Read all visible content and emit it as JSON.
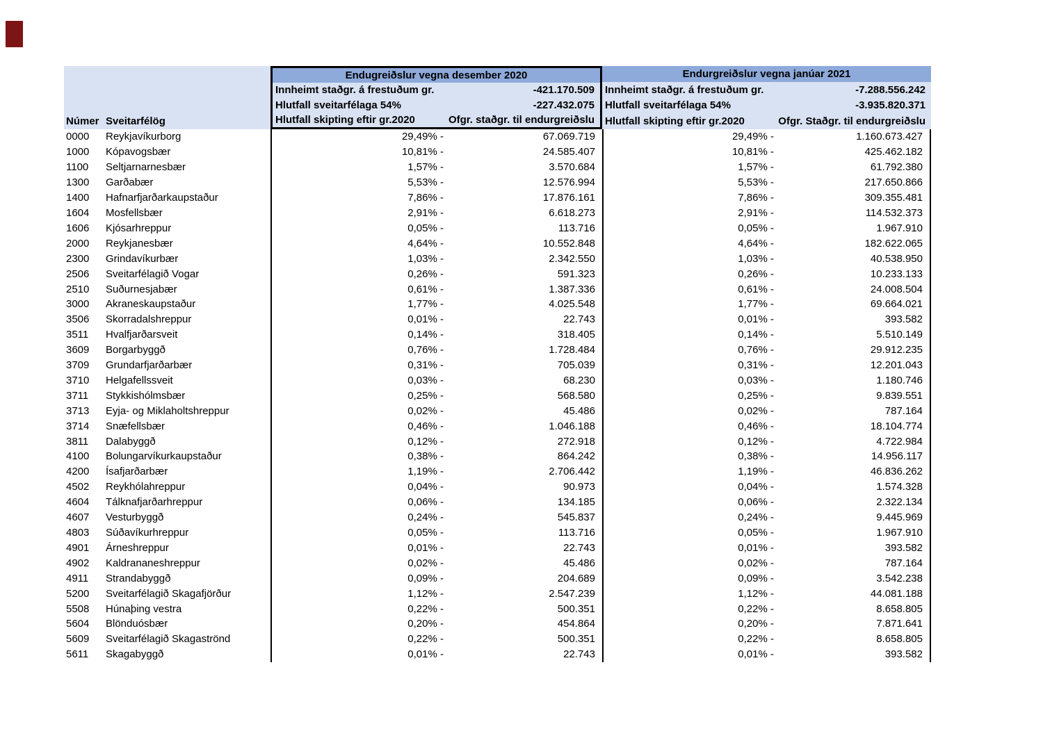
{
  "marker": {
    "color": "#7d1416"
  },
  "table": {
    "left_header": {
      "col1": "Númer",
      "col2": "Sveitarfélög"
    },
    "colors": {
      "title_band": "#8eaadb",
      "light_band": "#d9e2f3",
      "border": "#000000"
    },
    "groups": [
      {
        "title": "Endugreiðslur vegna desember 2020",
        "rows": [
          {
            "label": "Innheimt staðgr. á frestuðum gr.",
            "value": "-421.170.509"
          },
          {
            "label": "Hlutfall sveitarfélaga 54%",
            "value": "-227.432.075"
          },
          {
            "label": "Hlutfall skipting eftir gr.2020",
            "value": "Ofgr. staðgr. til endurgreiðslu"
          }
        ]
      },
      {
        "title": "Endurgreiðslur vegna janúar 2021",
        "rows": [
          {
            "label": "Innheimt staðgr. á frestuðum gr.",
            "value": "-7.288.556.242"
          },
          {
            "label": "Hlutfall sveitarfélaga 54%",
            "value": "-3.935.820.371"
          },
          {
            "label": "Hlutfall skipting eftir gr.2020",
            "value": "Ofgr. Staðgr. til endurgreiðslu"
          }
        ]
      }
    ],
    "rows": [
      {
        "code": "0000",
        "name": "Reykjavíkurborg",
        "pct_dec": "29,49% -",
        "val_dec": "67.069.719",
        "pct_jan": "29,49% -",
        "val_jan": "1.160.673.427"
      },
      {
        "code": "1000",
        "name": "Kópavogsbær",
        "pct_dec": "10,81% -",
        "val_dec": "24.585.407",
        "pct_jan": "10,81% -",
        "val_jan": "425.462.182"
      },
      {
        "code": "1100",
        "name": "Seltjarnarnesbær",
        "pct_dec": "1,57% -",
        "val_dec": "3.570.684",
        "pct_jan": "1,57% -",
        "val_jan": "61.792.380"
      },
      {
        "code": "1300",
        "name": "Garðabær",
        "pct_dec": "5,53% -",
        "val_dec": "12.576.994",
        "pct_jan": "5,53% -",
        "val_jan": "217.650.866"
      },
      {
        "code": "1400",
        "name": "Hafnarfjarðarkaupstaður",
        "pct_dec": "7,86% -",
        "val_dec": "17.876.161",
        "pct_jan": "7,86% -",
        "val_jan": "309.355.481"
      },
      {
        "code": "1604",
        "name": "Mosfellsbær",
        "pct_dec": "2,91% -",
        "val_dec": "6.618.273",
        "pct_jan": "2,91% -",
        "val_jan": "114.532.373"
      },
      {
        "code": "1606",
        "name": "Kjósarhreppur",
        "pct_dec": "0,05% -",
        "val_dec": "113.716",
        "pct_jan": "0,05% -",
        "val_jan": "1.967.910"
      },
      {
        "code": "2000",
        "name": "Reykjanesbær",
        "pct_dec": "4,64% -",
        "val_dec": "10.552.848",
        "pct_jan": "4,64% -",
        "val_jan": "182.622.065"
      },
      {
        "code": "2300",
        "name": "Grindavíkurbær",
        "pct_dec": "1,03% -",
        "val_dec": "2.342.550",
        "pct_jan": "1,03% -",
        "val_jan": "40.538.950"
      },
      {
        "code": "2506",
        "name": "Sveitarfélagið Vogar",
        "pct_dec": "0,26% -",
        "val_dec": "591.323",
        "pct_jan": "0,26% -",
        "val_jan": "10.233.133"
      },
      {
        "code": "2510",
        "name": "Suðurnesjabær",
        "pct_dec": "0,61% -",
        "val_dec": "1.387.336",
        "pct_jan": "0,61% -",
        "val_jan": "24.008.504"
      },
      {
        "code": "3000",
        "name": "Akraneskaupstaður",
        "pct_dec": "1,77% -",
        "val_dec": "4.025.548",
        "pct_jan": "1,77% -",
        "val_jan": "69.664.021"
      },
      {
        "code": "3506",
        "name": "Skorradalshreppur",
        "pct_dec": "0,01% -",
        "val_dec": "22.743",
        "pct_jan": "0,01% -",
        "val_jan": "393.582"
      },
      {
        "code": "3511",
        "name": "Hvalfjarðarsveit",
        "pct_dec": "0,14% -",
        "val_dec": "318.405",
        "pct_jan": "0,14% -",
        "val_jan": "5.510.149"
      },
      {
        "code": "3609",
        "name": "Borgarbyggð",
        "pct_dec": "0,76% -",
        "val_dec": "1.728.484",
        "pct_jan": "0,76% -",
        "val_jan": "29.912.235"
      },
      {
        "code": "3709",
        "name": "Grundarfjarðarbær",
        "pct_dec": "0,31% -",
        "val_dec": "705.039",
        "pct_jan": "0,31% -",
        "val_jan": "12.201.043"
      },
      {
        "code": "3710",
        "name": "Helgafellssveit",
        "pct_dec": "0,03% -",
        "val_dec": "68.230",
        "pct_jan": "0,03% -",
        "val_jan": "1.180.746"
      },
      {
        "code": "3711",
        "name": "Stykkishólmsbær",
        "pct_dec": "0,25% -",
        "val_dec": "568.580",
        "pct_jan": "0,25% -",
        "val_jan": "9.839.551"
      },
      {
        "code": "3713",
        "name": "Eyja- og Miklaholtshreppur",
        "pct_dec": "0,02% -",
        "val_dec": "45.486",
        "pct_jan": "0,02% -",
        "val_jan": "787.164"
      },
      {
        "code": "3714",
        "name": "Snæfellsbær",
        "pct_dec": "0,46% -",
        "val_dec": "1.046.188",
        "pct_jan": "0,46% -",
        "val_jan": "18.104.774"
      },
      {
        "code": "3811",
        "name": "Dalabyggð",
        "pct_dec": "0,12% -",
        "val_dec": "272.918",
        "pct_jan": "0,12% -",
        "val_jan": "4.722.984"
      },
      {
        "code": "4100",
        "name": "Bolungarvíkurkaupstaður",
        "pct_dec": "0,38% -",
        "val_dec": "864.242",
        "pct_jan": "0,38% -",
        "val_jan": "14.956.117"
      },
      {
        "code": "4200",
        "name": "Ísafjarðarbær",
        "pct_dec": "1,19% -",
        "val_dec": "2.706.442",
        "pct_jan": "1,19% -",
        "val_jan": "46.836.262"
      },
      {
        "code": "4502",
        "name": "Reykhólahreppur",
        "pct_dec": "0,04% -",
        "val_dec": "90.973",
        "pct_jan": "0,04% -",
        "val_jan": "1.574.328"
      },
      {
        "code": "4604",
        "name": "Tálknafjarðarhreppur",
        "pct_dec": "0,06% -",
        "val_dec": "134.185",
        "pct_jan": "0,06% -",
        "val_jan": "2.322.134"
      },
      {
        "code": "4607",
        "name": "Vesturbyggð",
        "pct_dec": "0,24% -",
        "val_dec": "545.837",
        "pct_jan": "0,24% -",
        "val_jan": "9.445.969"
      },
      {
        "code": "4803",
        "name": "Súðavíkurhreppur",
        "pct_dec": "0,05% -",
        "val_dec": "113.716",
        "pct_jan": "0,05% -",
        "val_jan": "1.967.910"
      },
      {
        "code": "4901",
        "name": "Árneshreppur",
        "pct_dec": "0,01% -",
        "val_dec": "22.743",
        "pct_jan": "0,01% -",
        "val_jan": "393.582"
      },
      {
        "code": "4902",
        "name": "Kaldrananeshreppur",
        "pct_dec": "0,02% -",
        "val_dec": "45.486",
        "pct_jan": "0,02% -",
        "val_jan": "787.164"
      },
      {
        "code": "4911",
        "name": "Strandabyggð",
        "pct_dec": "0,09% -",
        "val_dec": "204.689",
        "pct_jan": "0,09% -",
        "val_jan": "3.542.238"
      },
      {
        "code": "5200",
        "name": "Sveitarfélagið Skagafjörður",
        "pct_dec": "1,12% -",
        "val_dec": "2.547.239",
        "pct_jan": "1,12% -",
        "val_jan": "44.081.188"
      },
      {
        "code": "5508",
        "name": "Húnaþing vestra",
        "pct_dec": "0,22% -",
        "val_dec": "500.351",
        "pct_jan": "0,22% -",
        "val_jan": "8.658.805"
      },
      {
        "code": "5604",
        "name": "Blönduósbær",
        "pct_dec": "0,20% -",
        "val_dec": "454.864",
        "pct_jan": "0,20% -",
        "val_jan": "7.871.641"
      },
      {
        "code": "5609",
        "name": "Sveitarfélagið Skagaströnd",
        "pct_dec": "0,22% -",
        "val_dec": "500.351",
        "pct_jan": "0,22% -",
        "val_jan": "8.658.805"
      },
      {
        "code": "5611",
        "name": "Skagabyggð",
        "pct_dec": "0,01% -",
        "val_dec": "22.743",
        "pct_jan": "0,01% -",
        "val_jan": "393.582"
      }
    ]
  }
}
